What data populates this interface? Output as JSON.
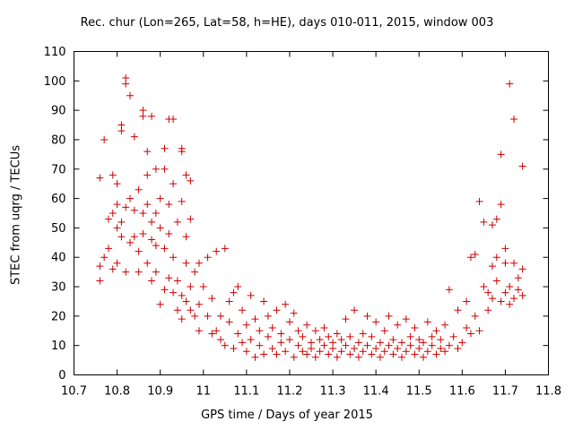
{
  "chart_data": {
    "type": "scatter",
    "title": "Rec. chur (Lon=265, Lat=58, h=HE), days 010-011, 2015, window 003",
    "xlabel": "GPS time / Days of year 2015",
    "ylabel": "STEC from uqrg / TECUs",
    "xlim": [
      10.7,
      11.8
    ],
    "ylim": [
      0,
      110
    ],
    "xticks": [
      "10.7",
      "10.8",
      "10.9",
      "11",
      "11.1",
      "11.2",
      "11.3",
      "11.4",
      "11.5",
      "11.6",
      "11.7",
      "11.8"
    ],
    "yticks": [
      "0",
      "10",
      "20",
      "30",
      "40",
      "50",
      "60",
      "70",
      "80",
      "90",
      "100",
      "110"
    ],
    "marker": "plus",
    "color": "#cc0000",
    "grid": false,
    "points": [
      [
        10.76,
        67
      ],
      [
        10.77,
        80
      ],
      [
        10.79,
        68
      ],
      [
        10.8,
        65
      ],
      [
        10.81,
        85
      ],
      [
        10.81,
        83
      ],
      [
        10.82,
        101
      ],
      [
        10.82,
        99
      ],
      [
        10.83,
        95
      ],
      [
        10.84,
        81
      ],
      [
        10.86,
        90
      ],
      [
        10.86,
        88
      ],
      [
        10.87,
        76
      ],
      [
        10.88,
        88
      ],
      [
        10.89,
        70
      ],
      [
        10.91,
        77
      ],
      [
        10.92,
        87
      ],
      [
        10.93,
        87
      ],
      [
        10.95,
        77
      ],
      [
        10.95,
        76
      ],
      [
        10.96,
        68
      ],
      [
        10.97,
        66
      ],
      [
        10.76,
        32
      ],
      [
        10.76,
        37
      ],
      [
        10.77,
        40
      ],
      [
        10.78,
        43
      ],
      [
        10.78,
        53
      ],
      [
        10.79,
        55
      ],
      [
        10.79,
        36
      ],
      [
        10.8,
        38
      ],
      [
        10.8,
        50
      ],
      [
        10.8,
        58
      ],
      [
        10.81,
        47
      ],
      [
        10.81,
        52
      ],
      [
        10.82,
        35
      ],
      [
        10.82,
        57
      ],
      [
        10.83,
        45
      ],
      [
        10.83,
        60
      ],
      [
        10.84,
        47
      ],
      [
        10.84,
        56
      ],
      [
        10.85,
        35
      ],
      [
        10.85,
        63
      ],
      [
        10.85,
        42
      ],
      [
        10.86,
        55
      ],
      [
        10.86,
        48
      ],
      [
        10.87,
        38
      ],
      [
        10.87,
        58
      ],
      [
        10.87,
        68
      ],
      [
        10.88,
        32
      ],
      [
        10.88,
        46
      ],
      [
        10.88,
        52
      ],
      [
        10.89,
        44
      ],
      [
        10.89,
        55
      ],
      [
        10.89,
        35
      ],
      [
        10.9,
        24
      ],
      [
        10.9,
        50
      ],
      [
        10.9,
        60
      ],
      [
        10.91,
        43
      ],
      [
        10.91,
        29
      ],
      [
        10.91,
        70
      ],
      [
        10.92,
        33
      ],
      [
        10.92,
        48
      ],
      [
        10.92,
        58
      ],
      [
        10.93,
        28
      ],
      [
        10.93,
        40
      ],
      [
        10.93,
        65
      ],
      [
        10.94,
        22
      ],
      [
        10.94,
        32
      ],
      [
        10.94,
        52
      ],
      [
        10.95,
        19
      ],
      [
        10.95,
        27
      ],
      [
        10.95,
        59
      ],
      [
        10.96,
        25
      ],
      [
        10.96,
        38
      ],
      [
        10.96,
        47
      ],
      [
        10.97,
        22
      ],
      [
        10.97,
        30
      ],
      [
        10.97,
        53
      ],
      [
        10.98,
        20
      ],
      [
        10.98,
        35
      ],
      [
        10.99,
        15
      ],
      [
        10.99,
        24
      ],
      [
        10.99,
        38
      ],
      [
        11.0,
        30
      ],
      [
        11.01,
        20
      ],
      [
        11.01,
        40
      ],
      [
        11.02,
        14
      ],
      [
        11.02,
        26
      ],
      [
        11.03,
        42
      ],
      [
        11.03,
        15
      ],
      [
        11.04,
        20
      ],
      [
        11.04,
        12
      ],
      [
        11.05,
        43
      ],
      [
        11.05,
        10
      ],
      [
        11.06,
        25
      ],
      [
        11.06,
        18
      ],
      [
        11.07,
        9
      ],
      [
        11.07,
        28
      ],
      [
        11.08,
        14
      ],
      [
        11.08,
        30
      ],
      [
        11.09,
        11
      ],
      [
        11.09,
        22
      ],
      [
        11.1,
        8
      ],
      [
        11.1,
        17
      ],
      [
        11.11,
        27
      ],
      [
        11.11,
        12
      ],
      [
        11.12,
        6
      ],
      [
        11.12,
        19
      ],
      [
        11.13,
        10
      ],
      [
        11.13,
        15
      ],
      [
        11.14,
        7
      ],
      [
        11.14,
        25
      ],
      [
        11.15,
        13
      ],
      [
        11.15,
        20
      ],
      [
        11.16,
        9
      ],
      [
        11.16,
        16
      ],
      [
        11.17,
        7
      ],
      [
        11.17,
        22
      ],
      [
        11.18,
        11
      ],
      [
        11.18,
        14
      ],
      [
        11.19,
        24
      ],
      [
        11.19,
        8
      ],
      [
        11.2,
        18
      ],
      [
        11.2,
        12
      ],
      [
        11.21,
        6
      ],
      [
        11.21,
        21
      ],
      [
        11.22,
        10
      ],
      [
        11.22,
        15
      ],
      [
        11.23,
        8
      ],
      [
        11.23,
        13
      ],
      [
        11.24,
        17
      ],
      [
        11.24,
        7
      ],
      [
        11.25,
        11
      ],
      [
        11.25,
        9
      ],
      [
        11.26,
        15
      ],
      [
        11.26,
        6
      ],
      [
        11.27,
        12
      ],
      [
        11.27,
        8
      ],
      [
        11.28,
        16
      ],
      [
        11.28,
        10
      ],
      [
        11.29,
        7
      ],
      [
        11.29,
        13
      ],
      [
        11.3,
        9
      ],
      [
        11.3,
        11
      ],
      [
        11.31,
        6
      ],
      [
        11.31,
        14
      ],
      [
        11.32,
        8
      ],
      [
        11.32,
        12
      ],
      [
        11.33,
        10
      ],
      [
        11.33,
        19
      ],
      [
        11.34,
        7
      ],
      [
        11.34,
        13
      ],
      [
        11.35,
        9
      ],
      [
        11.35,
        22
      ],
      [
        11.36,
        6
      ],
      [
        11.36,
        11
      ],
      [
        11.37,
        14
      ],
      [
        11.37,
        8
      ],
      [
        11.38,
        20
      ],
      [
        11.38,
        10
      ],
      [
        11.39,
        7
      ],
      [
        11.39,
        13
      ],
      [
        11.4,
        9
      ],
      [
        11.4,
        18
      ],
      [
        11.41,
        6
      ],
      [
        11.41,
        11
      ],
      [
        11.42,
        15
      ],
      [
        11.42,
        8
      ],
      [
        11.43,
        20
      ],
      [
        11.43,
        10
      ],
      [
        11.44,
        7
      ],
      [
        11.44,
        12
      ],
      [
        11.45,
        9
      ],
      [
        11.45,
        17
      ],
      [
        11.46,
        6
      ],
      [
        11.46,
        11
      ],
      [
        11.47,
        19
      ],
      [
        11.47,
        8
      ],
      [
        11.48,
        13
      ],
      [
        11.48,
        10
      ],
      [
        11.49,
        7
      ],
      [
        11.49,
        16
      ],
      [
        11.5,
        9
      ],
      [
        11.5,
        12
      ],
      [
        11.51,
        6
      ],
      [
        11.51,
        11
      ],
      [
        11.52,
        18
      ],
      [
        11.52,
        8
      ],
      [
        11.53,
        13
      ],
      [
        11.53,
        10
      ],
      [
        11.54,
        7
      ],
      [
        11.54,
        15
      ],
      [
        11.55,
        9
      ],
      [
        11.55,
        12
      ],
      [
        11.56,
        8
      ],
      [
        11.56,
        17
      ],
      [
        11.57,
        29
      ],
      [
        11.57,
        10
      ],
      [
        11.58,
        13
      ],
      [
        11.59,
        9
      ],
      [
        11.59,
        22
      ],
      [
        11.6,
        11
      ],
      [
        11.61,
        25
      ],
      [
        11.61,
        16
      ],
      [
        11.62,
        14
      ],
      [
        11.62,
        40
      ],
      [
        11.63,
        20
      ],
      [
        11.63,
        41
      ],
      [
        11.64,
        15
      ],
      [
        11.64,
        59
      ],
      [
        11.65,
        30
      ],
      [
        11.65,
        52
      ],
      [
        11.66,
        22
      ],
      [
        11.66,
        28
      ],
      [
        11.67,
        26
      ],
      [
        11.67,
        37
      ],
      [
        11.67,
        51
      ],
      [
        11.68,
        40
      ],
      [
        11.68,
        53
      ],
      [
        11.68,
        32
      ],
      [
        11.69,
        25
      ],
      [
        11.69,
        58
      ],
      [
        11.69,
        75
      ],
      [
        11.7,
        28
      ],
      [
        11.7,
        43
      ],
      [
        11.7,
        38
      ],
      [
        11.71,
        24
      ],
      [
        11.71,
        99
      ],
      [
        11.71,
        30
      ],
      [
        11.72,
        26
      ],
      [
        11.72,
        87
      ],
      [
        11.72,
        38
      ],
      [
        11.73,
        29
      ],
      [
        11.73,
        33
      ],
      [
        11.74,
        27
      ],
      [
        11.74,
        71
      ],
      [
        11.74,
        36
      ]
    ]
  }
}
